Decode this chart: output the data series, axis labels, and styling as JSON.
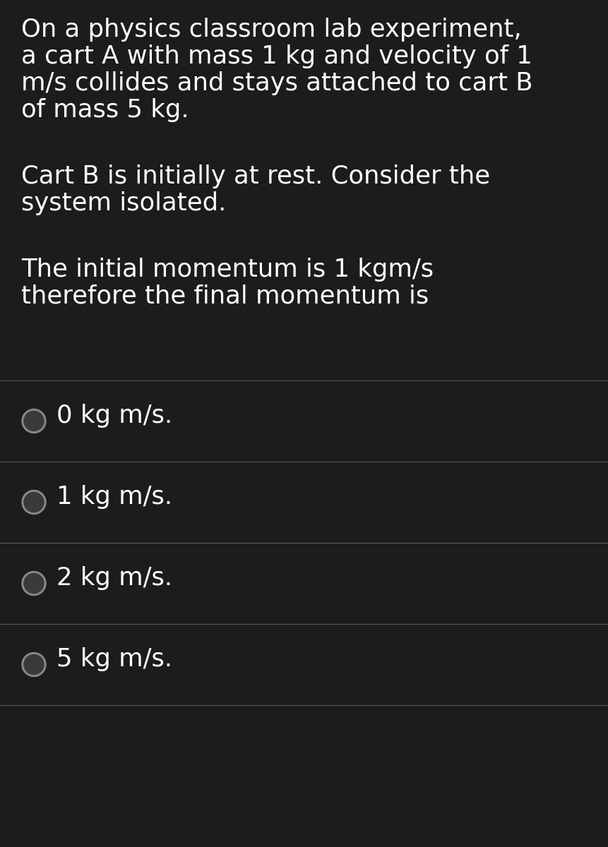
{
  "background_color": "#1c1c1c",
  "text_color": "#ffffff",
  "paragraph1_lines": [
    "On a physics classroom lab experiment,",
    "a cart A with mass 1 kg and velocity of 1",
    "m/s collides and stays attached to cart B",
    "of mass 5 kg."
  ],
  "paragraph2_lines": [
    "Cart B is initially at rest. Consider the",
    "system isolated."
  ],
  "paragraph3_lines": [
    "The initial momentum is 1 kgm/s",
    "therefore the final momentum is"
  ],
  "options": [
    "0 kg m/s.",
    "1 kg m/s.",
    "2 kg m/s.",
    "5 kg m/s."
  ],
  "font_size_para": 25.5,
  "font_size_options": 25.5,
  "line_color": "#5a5a5a",
  "circle_outer_color": "#888888",
  "circle_inner_color": "#3a3a3a",
  "figsize": [
    8.61,
    12.0
  ],
  "dpi": 100
}
